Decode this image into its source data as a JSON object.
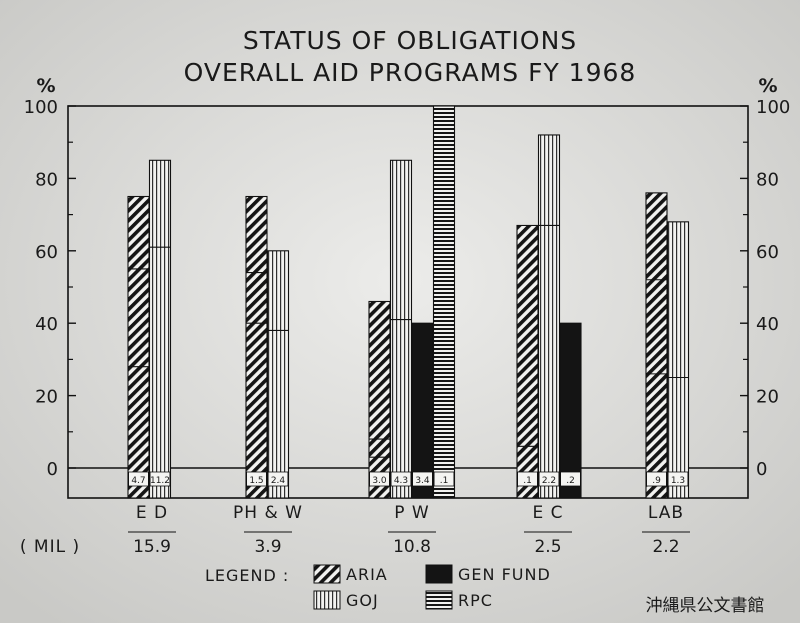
{
  "chart_data": {
    "type": "bar",
    "title": [
      "STATUS OF OBLIGATIONS",
      "OVERALL AID PROGRAMS FY 1968"
    ],
    "ylabel_left": "%",
    "ylabel_right": "%",
    "ylim": [
      0,
      100
    ],
    "yticks": [
      "0",
      "20",
      "40",
      "60",
      "80",
      "100"
    ],
    "categories": [
      "E D",
      "PH & W",
      "P W",
      "E C",
      "LAB"
    ],
    "row_label": "( MIL )",
    "totals": [
      "15.9",
      "3.9",
      "10.8",
      "2.5",
      "2.2"
    ],
    "series": [
      {
        "name": "ARIA",
        "pattern": "diagonal",
        "values": [
          75,
          75,
          46,
          67,
          76
        ],
        "amounts": [
          "4.7",
          "1.5",
          "3.0",
          ".1",
          ".9"
        ]
      },
      {
        "name": "GOJ",
        "pattern": "vertical",
        "values": [
          85,
          60,
          85,
          92,
          68
        ],
        "amounts": [
          "11.2",
          "2.4",
          "4.3",
          "2.2",
          "1.3"
        ]
      },
      {
        "name": "GEN FUND",
        "pattern": "solid",
        "values": [
          null,
          null,
          40,
          40,
          null
        ],
        "amounts": [
          "",
          "",
          "3.4",
          ".2",
          ""
        ]
      },
      {
        "name": "RPC",
        "pattern": "horizontal",
        "values": [
          null,
          null,
          100,
          null,
          null
        ],
        "amounts": [
          "",
          "",
          ".1",
          "",
          ""
        ]
      }
    ],
    "internal_lines": [
      {
        "series": 0,
        "category": 0,
        "at": [
          28,
          55
        ]
      },
      {
        "series": 1,
        "category": 0,
        "at": [
          61
        ]
      },
      {
        "series": 0,
        "category": 1,
        "at": [
          40,
          54
        ]
      },
      {
        "series": 1,
        "category": 1,
        "at": [
          38
        ]
      },
      {
        "series": 0,
        "category": 2,
        "at": [
          3,
          8
        ]
      },
      {
        "series": 1,
        "category": 2,
        "at": [
          41
        ]
      },
      {
        "series": 0,
        "category": 3,
        "at": [
          6
        ]
      },
      {
        "series": 1,
        "category": 3,
        "at": [
          67
        ]
      },
      {
        "series": 0,
        "category": 4,
        "at": [
          26,
          52
        ]
      },
      {
        "series": 1,
        "category": 4,
        "at": [
          25
        ]
      }
    ],
    "legend_title": "LEGEND :",
    "legend_position": "bottom",
    "grid": false
  },
  "watermark": "沖縄県公文書館"
}
